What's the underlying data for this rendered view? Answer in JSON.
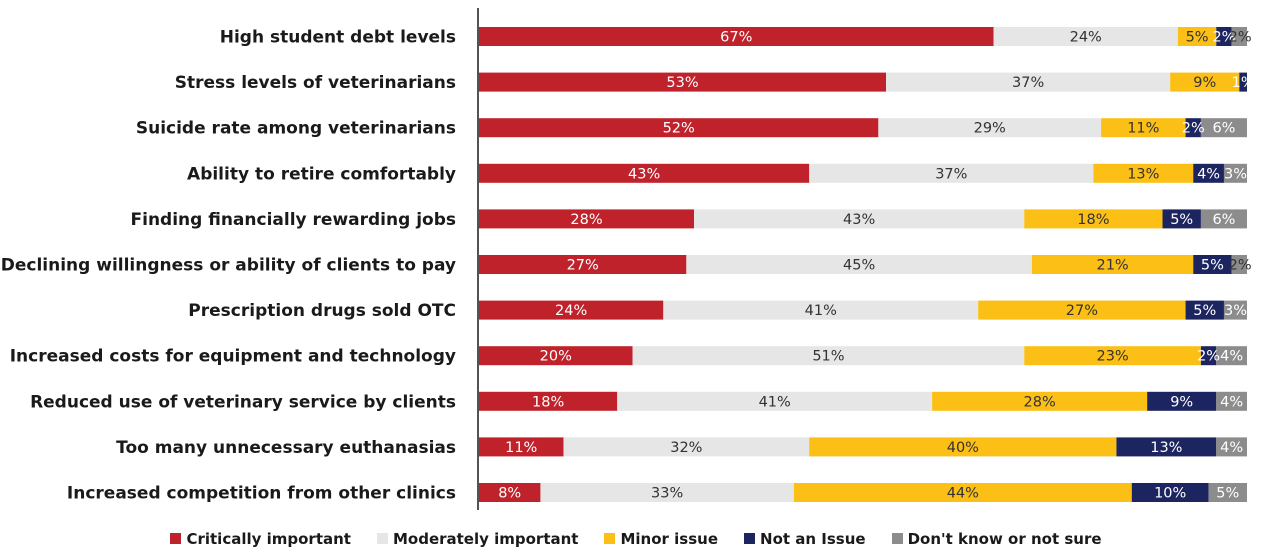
{
  "chart_data": {
    "type": "bar",
    "orientation": "horizontal",
    "stacked": true,
    "title": "",
    "xlabel": "",
    "ylabel": "",
    "xlim": [
      0,
      100
    ],
    "grid": false,
    "legend_position": "bottom",
    "categories": [
      "High student debt levels",
      "Stress levels of veterinarians",
      "Suicide rate among veterinarians",
      "Ability to retire comfortably",
      "Finding financially rewarding jobs",
      "Declining willingness or ability of clients to pay",
      "Prescription drugs sold OTC",
      "Increased costs for equipment and technology",
      "Reduced use of veterinary service by clients",
      "Too many unnecessary euthanasias",
      "Increased competition from other clinics"
    ],
    "series": [
      {
        "name": "Critically important",
        "color": "#c0222b",
        "label_color": "#ffffff",
        "values": [
          67,
          53,
          52,
          43,
          28,
          27,
          24,
          20,
          18,
          11,
          8
        ],
        "labels": [
          "67%",
          "53%",
          "52%",
          "43%",
          "28%",
          "27%",
          "24%",
          "20%",
          "18%",
          "11%",
          "8%"
        ]
      },
      {
        "name": "Moderately important",
        "color": "#e6e6e6",
        "label_color": "#333333",
        "values": [
          24,
          37,
          29,
          37,
          43,
          45,
          41,
          51,
          41,
          32,
          33
        ],
        "labels": [
          "24%",
          "37%",
          "29%",
          "37%",
          "43%",
          "45%",
          "41%",
          "51%",
          "41%",
          "32%",
          "33%"
        ]
      },
      {
        "name": "Minor issue",
        "color": "#fbbf16",
        "label_color": "#333333",
        "values": [
          5,
          9,
          11,
          13,
          18,
          21,
          27,
          23,
          28,
          40,
          44
        ],
        "labels": [
          "5%",
          "9%",
          "11%",
          "13%",
          "18%",
          "21%",
          "27%",
          "23%",
          "28%",
          "40%",
          "44%"
        ]
      },
      {
        "name": "Not an Issue",
        "color": "#1c2560",
        "label_color": "#ffffff",
        "values": [
          2,
          1,
          2,
          4,
          5,
          5,
          5,
          2,
          9,
          13,
          10
        ],
        "labels": [
          "2%",
          "1%",
          "2%",
          "4%",
          "5%",
          "5%",
          "5%",
          "2%",
          "9%",
          "13%",
          "10%"
        ]
      },
      {
        "name": "Don't know or not sure",
        "color": "#8c8c8c",
        "label_color": "#ffffff",
        "values": [
          2,
          0,
          6,
          3,
          6,
          2,
          3,
          4,
          4,
          4,
          5
        ],
        "labels": [
          "2%",
          "",
          "6%",
          "3%",
          "6%",
          "2%",
          "3%",
          "4%",
          "4%",
          "4%",
          "5%"
        ]
      }
    ]
  }
}
